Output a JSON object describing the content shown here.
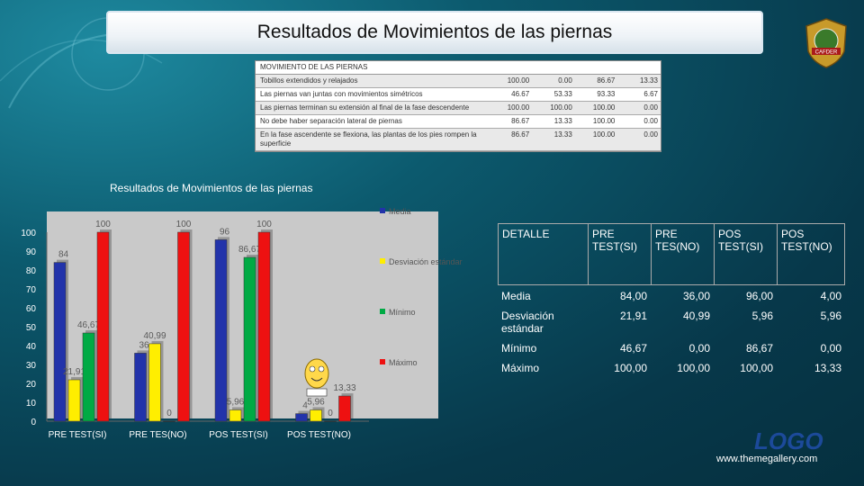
{
  "slide": {
    "title": "Resultados de Movimientos de las piernas",
    "logo_text": "LOGO",
    "url": "www.themegallery.com",
    "emblem_text": "CAFDER"
  },
  "mini_table": {
    "header": "MOVIMIENTO DE LAS PIERNAS",
    "rows": [
      {
        "label": "Tobillos extendidos y relajados",
        "values": [
          "100.00",
          "0.00",
          "86.67",
          "13.33"
        ]
      },
      {
        "label": "Las piernas van juntas con movimientos simétricos",
        "values": [
          "46.67",
          "53.33",
          "93.33",
          "6.67"
        ]
      },
      {
        "label": "Las piernas terminan su extensión al final de la fase descendente",
        "values": [
          "100.00",
          "100.00",
          "100.00",
          "0.00"
        ]
      },
      {
        "label": "No debe haber separación lateral de piernas",
        "values": [
          "86.67",
          "13.33",
          "100.00",
          "0.00"
        ]
      },
      {
        "label": "En la fase ascendente se flexiona, las plantas de los pies rompen la superficie",
        "values": [
          "86.67",
          "13.33",
          "100.00",
          "0.00"
        ]
      }
    ]
  },
  "chart_data": {
    "type": "bar",
    "title": "Resultados de Movimientos de las piernas",
    "categories": [
      "PRE TEST(SI)",
      "PRE TES(NO)",
      "POS TEST(SI)",
      "POS TEST(NO)"
    ],
    "series": [
      {
        "name": "Media",
        "values": [
          84,
          36,
          96,
          4
        ],
        "labels": [
          "84",
          "36",
          "96",
          "4"
        ]
      },
      {
        "name": "Desviación estándar",
        "values": [
          21.91,
          40.99,
          5.96,
          5.96
        ],
        "labels": [
          "21,91",
          "40,99",
          "5,96",
          "5,96"
        ]
      },
      {
        "name": "Mínimo",
        "values": [
          46.67,
          0,
          86.67,
          0
        ],
        "labels": [
          "46,67",
          "0",
          "86,67",
          "0"
        ]
      },
      {
        "name": "Máximo",
        "values": [
          100,
          100,
          100,
          13.33
        ],
        "labels": [
          "100",
          "100",
          "100",
          "13,33"
        ]
      }
    ],
    "ylim": [
      0,
      100
    ],
    "yticks": [
      "0",
      "10",
      "20",
      "30",
      "40",
      "50",
      "60",
      "70",
      "80",
      "90",
      "100"
    ],
    "colors": [
      "#2233aa",
      "#ffee00",
      "#00aa44",
      "#ee1111"
    ],
    "legend_position": "right",
    "grid": false
  },
  "detail_table": {
    "headers": [
      "DETALLE",
      "PRE TEST(SI)",
      "PRE TES(NO)",
      "POS TEST(SI)",
      "POS TEST(NO)"
    ],
    "rows": [
      {
        "label": "Media",
        "values": [
          "84,00",
          "36,00",
          "96,00",
          "4,00"
        ]
      },
      {
        "label": "Desviación estándar",
        "values": [
          "21,91",
          "40,99",
          "5,96",
          "5,96"
        ]
      },
      {
        "label": "Mínimo",
        "values": [
          "46,67",
          "0,00",
          "86,67",
          "0,00"
        ]
      },
      {
        "label": "Máximo",
        "values": [
          "100,00",
          "100,00",
          "100,00",
          "13,33"
        ]
      }
    ]
  }
}
